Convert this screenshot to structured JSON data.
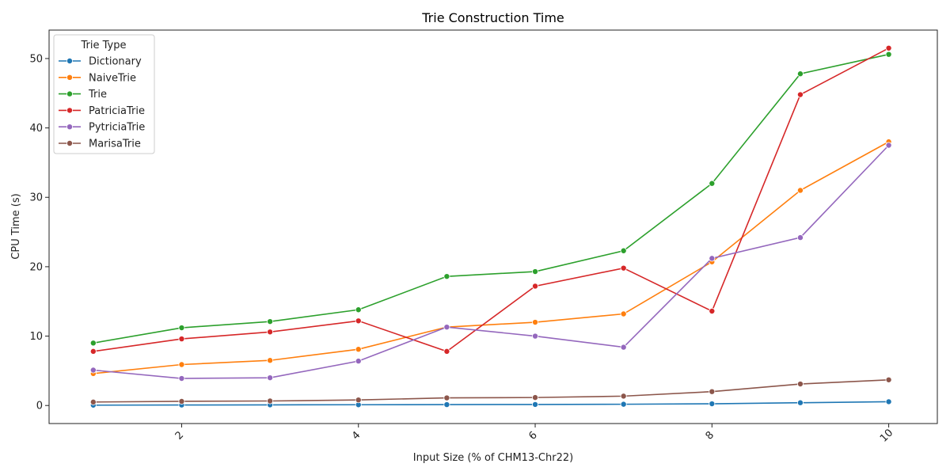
{
  "chart_data": {
    "type": "line",
    "title": "Trie Construction Time",
    "xlabel": "Input Size (% of CHM13-Chr22)",
    "ylabel": "CPU Time (s)",
    "x": [
      1,
      2,
      3,
      4,
      5,
      6,
      7,
      8,
      9,
      10
    ],
    "xlim": [
      0.5,
      10.55
    ],
    "ylim": [
      -2.6,
      54.1
    ],
    "xticks": [
      2,
      4,
      6,
      8,
      10
    ],
    "yticks": [
      0,
      10,
      20,
      30,
      40,
      50
    ],
    "grid": false,
    "legend": {
      "title": "Trie Type",
      "placement": "top-left"
    },
    "series": [
      {
        "name": "Dictionary",
        "color": "#1f77b4",
        "values": [
          0.05,
          0.07,
          0.09,
          0.11,
          0.13,
          0.15,
          0.18,
          0.25,
          0.4,
          0.55
        ]
      },
      {
        "name": "NaiveTrie",
        "color": "#ff7f0e",
        "values": [
          4.6,
          5.9,
          6.5,
          8.1,
          11.3,
          12.0,
          13.2,
          20.7,
          31.0,
          38.0
        ]
      },
      {
        "name": "Trie",
        "color": "#2ca02c",
        "values": [
          9.0,
          11.2,
          12.1,
          13.8,
          18.6,
          19.3,
          22.3,
          32.0,
          47.8,
          50.6
        ]
      },
      {
        "name": "PatriciaTrie",
        "color": "#d62728",
        "values": [
          7.8,
          9.6,
          10.6,
          12.2,
          7.8,
          17.2,
          19.8,
          13.6,
          44.8,
          51.5
        ]
      },
      {
        "name": "PytriciaTrie",
        "color": "#9467bd",
        "values": [
          5.1,
          3.9,
          4.0,
          6.4,
          11.3,
          10.0,
          8.4,
          21.2,
          24.2,
          37.5
        ]
      },
      {
        "name": "MarisaTrie",
        "color": "#8c564b",
        "values": [
          0.5,
          0.6,
          0.65,
          0.8,
          1.1,
          1.15,
          1.35,
          2.0,
          3.1,
          3.7
        ]
      }
    ]
  }
}
